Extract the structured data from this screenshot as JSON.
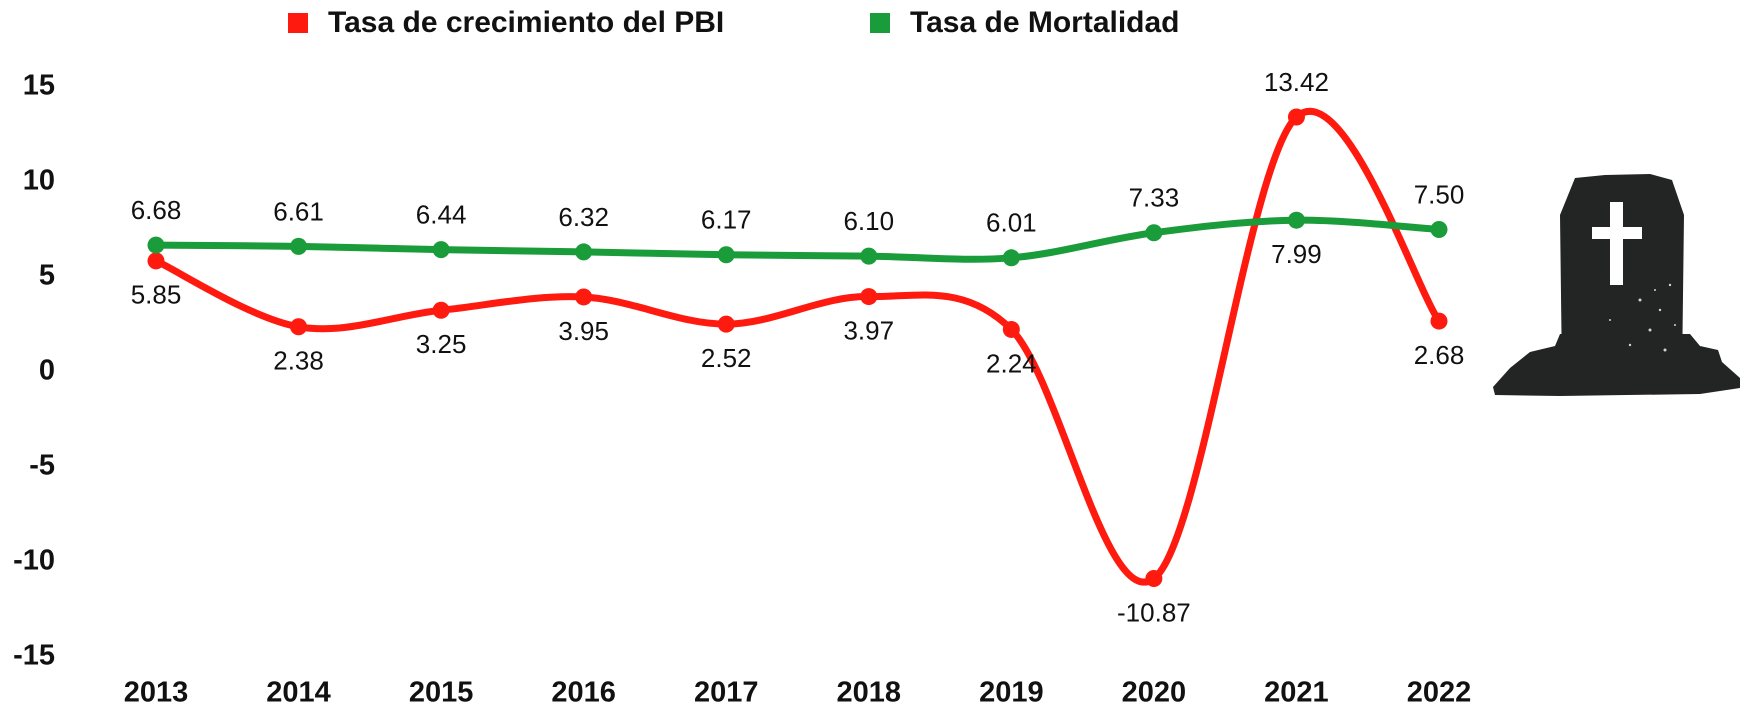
{
  "chart_data": {
    "type": "line",
    "categories": [
      "2013",
      "2014",
      "2015",
      "2016",
      "2017",
      "2018",
      "2019",
      "2020",
      "2021",
      "2022"
    ],
    "series": [
      {
        "name": "Tasa de crecimiento del PBI",
        "color": "#ff1a10",
        "values": [
          5.85,
          2.38,
          3.25,
          3.95,
          2.52,
          3.97,
          2.24,
          -10.87,
          13.42,
          2.68
        ],
        "value_labels": [
          "5.85",
          "2.38",
          "3.25",
          "3.95",
          "2.52",
          "3.97",
          "2.24",
          "-10.87",
          "13.42",
          "2.68"
        ]
      },
      {
        "name": "Tasa de Mortalidad",
        "color": "#1a9c3a",
        "values": [
          6.68,
          6.61,
          6.44,
          6.32,
          6.17,
          6.1,
          6.01,
          7.33,
          7.99,
          7.5
        ],
        "value_labels": [
          "6.68",
          "6.61",
          "6.44",
          "6.32",
          "6.17",
          "6.10",
          "6.01",
          "7.33",
          "7.99",
          "7.50"
        ]
      }
    ],
    "ylim": [
      -15,
      15
    ],
    "yticks": [
      -15,
      -10,
      -5,
      0,
      5,
      10,
      15
    ],
    "grid": false
  }
}
